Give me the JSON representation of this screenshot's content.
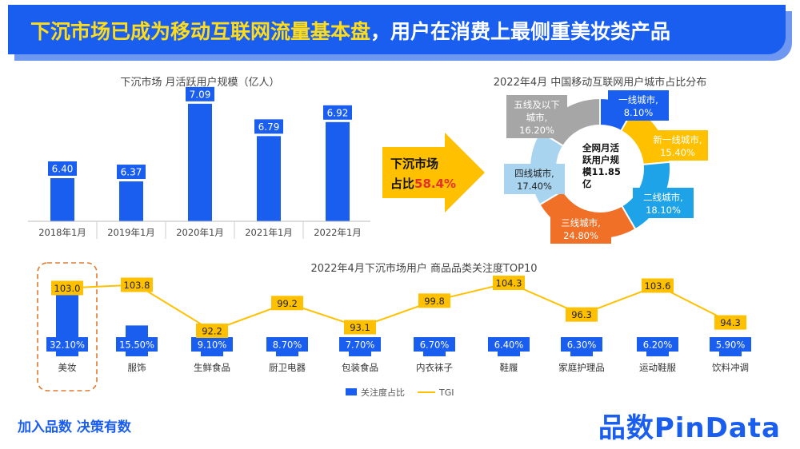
{
  "header": {
    "title_part1": "下沉市场已成为移动互联网流量基本盘",
    "title_part2": "，用户在消费上最侧重美妆类产品"
  },
  "callout": {
    "line1": "下沉市场",
    "line2_prefix": "占比",
    "line2_value": "58.4%"
  },
  "footer": {
    "slogan": "加入品数 决策有数",
    "logo": "品数PinData"
  },
  "colors": {
    "primary_blue": "#1a5ef0",
    "gold": "#ffc000",
    "orange": "#f07028",
    "gray": "#a6a6a6",
    "light_blue": "#a8d4f0",
    "sky_blue": "#1fa3e8"
  },
  "chart_data": [
    {
      "type": "bar",
      "title": "下沉市场 月活跃用户规模（亿人）",
      "categories": [
        "2018年1月",
        "2019年1月",
        "2020年1月",
        "2021年1月",
        "2022年1月"
      ],
      "values": [
        6.4,
        6.37,
        7.09,
        6.79,
        6.92
      ],
      "value_labels": [
        "6.40",
        "6.37",
        "7.09",
        "6.79",
        "6.92"
      ],
      "ylim": [
        6.0,
        7.2
      ]
    },
    {
      "type": "pie",
      "title": "2022年4月  中国移动互联网用户城市占比分布",
      "center_label": [
        "全网月活",
        "跃用户规",
        "模11.85",
        "亿"
      ],
      "slices": [
        {
          "name": [
            "一线城市,"
          ],
          "value": 8.1,
          "label": "8.10%",
          "color": "#1a5ef0"
        },
        {
          "name": [
            "新一线城市,"
          ],
          "value": 15.4,
          "label": "15.40%",
          "color": "#ffc000"
        },
        {
          "name": [
            "二线城市,"
          ],
          "value": 18.1,
          "label": "18.10%",
          "color": "#1fa3e8"
        },
        {
          "name": [
            "三线城市,"
          ],
          "value": 24.8,
          "label": "24.80%",
          "color": "#f07028"
        },
        {
          "name": [
            "四线城市,"
          ],
          "value": 17.4,
          "label": "17.40%",
          "color": "#a8d4f0"
        },
        {
          "name": [
            "五线及以下",
            "城市,"
          ],
          "value": 16.2,
          "label": "16.20%",
          "color": "#a6a6a6"
        }
      ]
    },
    {
      "type": "bar",
      "title": "2022年4月下沉市场用户  商品品类关注度TOP10",
      "categories": [
        "美妆",
        "服饰",
        "生鲜食品",
        "厨卫电器",
        "包装食品",
        "内衣袜子",
        "鞋履",
        "家庭护理品",
        "运动鞋服",
        "饮料冲调"
      ],
      "series": [
        {
          "name": "关注度占比",
          "values": [
            32.1,
            15.5,
            9.1,
            8.7,
            7.7,
            6.7,
            6.4,
            6.3,
            6.2,
            5.9
          ],
          "value_labels": [
            "32.10%",
            "15.50%",
            "9.10%",
            "8.70%",
            "7.70%",
            "6.70%",
            "6.40%",
            "6.30%",
            "6.20%",
            "5.90%"
          ]
        },
        {
          "name": "TGI",
          "type": "line",
          "values": [
            103.0,
            103.8,
            92.2,
            99.2,
            93.1,
            99.8,
            104.3,
            96.3,
            103.6,
            94.3
          ],
          "value_labels": [
            "103.0",
            "103.8",
            "92.2",
            "99.2",
            "93.1",
            "99.8",
            "104.3",
            "96.3",
            "103.6",
            "94.3"
          ]
        }
      ],
      "legend": [
        "关注度占比",
        "TGI"
      ],
      "highlight": "美妆"
    }
  ]
}
